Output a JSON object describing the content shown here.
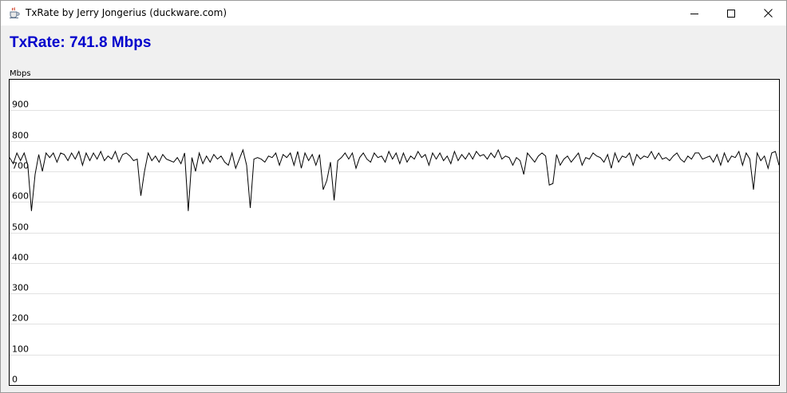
{
  "window": {
    "title": "TxRate by Jerry Jongerius (duckware.com)",
    "icons": {
      "app": "java-coffee-cup-icon",
      "minimize": "minimize-icon",
      "maximize": "maximize-icon",
      "close": "close-icon"
    }
  },
  "main": {
    "rate_text": "TxRate: 741.8 Mbps",
    "rate_color": "#0000cc"
  },
  "chart_data": {
    "type": "line",
    "ylabel": "Mbps",
    "ylim": [
      0,
      1000
    ],
    "yticks": [
      "0",
      "100",
      "200",
      "300",
      "400",
      "500",
      "600",
      "700",
      "800",
      "900"
    ],
    "grid": true,
    "line_color": "#000000",
    "series": [
      {
        "values": [
          745,
          725,
          760,
          735,
          760,
          720,
          570,
          690,
          755,
          700,
          760,
          745,
          760,
          730,
          760,
          755,
          735,
          760,
          740,
          765,
          720,
          760,
          735,
          760,
          740,
          765,
          735,
          750,
          740,
          765,
          730,
          755,
          760,
          750,
          735,
          740,
          620,
          700,
          760,
          735,
          750,
          730,
          755,
          740,
          735,
          730,
          745,
          725,
          760,
          570,
          745,
          700,
          760,
          725,
          750,
          730,
          755,
          740,
          750,
          730,
          720,
          760,
          710,
          740,
          770,
          720,
          580,
          740,
          745,
          740,
          730,
          750,
          745,
          760,
          720,
          755,
          745,
          760,
          720,
          765,
          710,
          760,
          735,
          755,
          720,
          755,
          640,
          670,
          730,
          605,
          735,
          745,
          760,
          740,
          760,
          710,
          745,
          760,
          740,
          730,
          760,
          745,
          750,
          730,
          765,
          740,
          760,
          725,
          760,
          730,
          750,
          740,
          765,
          745,
          755,
          720,
          760,
          740,
          760,
          735,
          750,
          725,
          765,
          735,
          755,
          740,
          760,
          740,
          765,
          750,
          755,
          740,
          760,
          745,
          770,
          740,
          750,
          745,
          720,
          745,
          735,
          690,
          760,
          745,
          730,
          750,
          760,
          750,
          655,
          660,
          755,
          720,
          740,
          750,
          730,
          745,
          760,
          720,
          745,
          740,
          760,
          750,
          745,
          730,
          755,
          710,
          760,
          730,
          750,
          745,
          760,
          720,
          755,
          740,
          750,
          745,
          765,
          740,
          760,
          740,
          745,
          735,
          750,
          760,
          740,
          730,
          750,
          740,
          760,
          760,
          740,
          745,
          750,
          730,
          755,
          720,
          760,
          730,
          750,
          745,
          765,
          720,
          760,
          740,
          640,
          760,
          735,
          750,
          710,
          760,
          765,
          720
        ]
      }
    ]
  }
}
